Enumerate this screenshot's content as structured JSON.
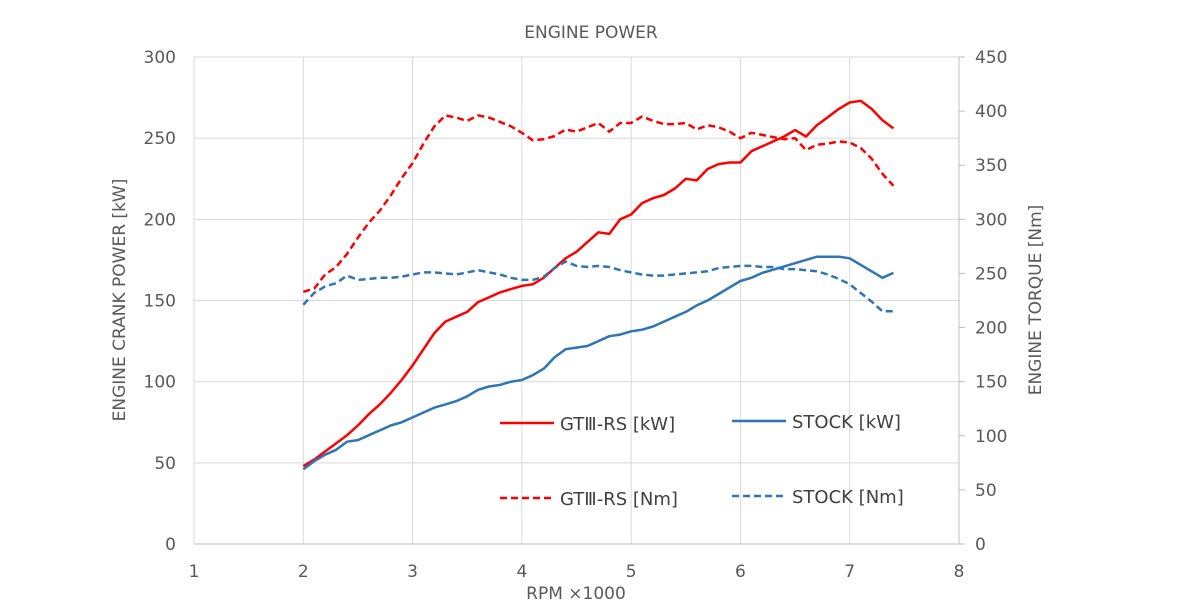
{
  "chart_data": {
    "type": "line",
    "title": "ENGINE POWER",
    "xlabel": "RPM ×1000",
    "ylabel": "ENGINE CRANK POWER [kW]",
    "y2label": "ENGINE TORQUE [Nm]",
    "xlim": [
      1,
      8
    ],
    "ylim": [
      0,
      300
    ],
    "y2lim": [
      0,
      450
    ],
    "xticks": [
      1,
      2,
      3,
      4,
      5,
      6,
      7,
      8
    ],
    "yticks": [
      0,
      50,
      100,
      150,
      200,
      250,
      300
    ],
    "y2ticks": [
      0,
      50,
      100,
      150,
      200,
      250,
      300,
      350,
      400,
      450
    ],
    "grid": "vertical and horizontal",
    "legend_position": "inside, lower-right",
    "series": [
      {
        "name": "GTⅢ-RS [kW]",
        "axis": "left",
        "color": "#ff0000",
        "dash": "solid",
        "points": [
          [
            2.0,
            48
          ],
          [
            2.1,
            52
          ],
          [
            2.2,
            57
          ],
          [
            2.3,
            62
          ],
          [
            2.4,
            67
          ],
          [
            2.5,
            73
          ],
          [
            2.6,
            80
          ],
          [
            2.7,
            86
          ],
          [
            2.8,
            93
          ],
          [
            2.9,
            101
          ],
          [
            3.0,
            110
          ],
          [
            3.1,
            120
          ],
          [
            3.2,
            130
          ],
          [
            3.3,
            137
          ],
          [
            3.4,
            140
          ],
          [
            3.5,
            143
          ],
          [
            3.6,
            149
          ],
          [
            3.7,
            152
          ],
          [
            3.8,
            155
          ],
          [
            3.9,
            157
          ],
          [
            4.0,
            159
          ],
          [
            4.1,
            160
          ],
          [
            4.2,
            164
          ],
          [
            4.3,
            170
          ],
          [
            4.4,
            176
          ],
          [
            4.5,
            180
          ],
          [
            4.6,
            186
          ],
          [
            4.7,
            192
          ],
          [
            4.8,
            191
          ],
          [
            4.9,
            200
          ],
          [
            5.0,
            203
          ],
          [
            5.1,
            210
          ],
          [
            5.2,
            213
          ],
          [
            5.3,
            215
          ],
          [
            5.4,
            219
          ],
          [
            5.5,
            225
          ],
          [
            5.6,
            224
          ],
          [
            5.7,
            231
          ],
          [
            5.8,
            234
          ],
          [
            5.9,
            235
          ],
          [
            6.0,
            235
          ],
          [
            6.1,
            242
          ],
          [
            6.2,
            245
          ],
          [
            6.3,
            248
          ],
          [
            6.4,
            251
          ],
          [
            6.5,
            255
          ],
          [
            6.6,
            251
          ],
          [
            6.7,
            258
          ],
          [
            6.8,
            263
          ],
          [
            6.9,
            268
          ],
          [
            7.0,
            272
          ],
          [
            7.1,
            273
          ],
          [
            7.2,
            268
          ],
          [
            7.3,
            261
          ],
          [
            7.4,
            256
          ]
        ]
      },
      {
        "name": "STOCK [kW]",
        "axis": "left",
        "color": "#2e75b6",
        "dash": "solid",
        "points": [
          [
            2.0,
            46
          ],
          [
            2.1,
            51
          ],
          [
            2.2,
            55
          ],
          [
            2.3,
            58
          ],
          [
            2.4,
            63
          ],
          [
            2.5,
            64
          ],
          [
            2.6,
            67
          ],
          [
            2.7,
            70
          ],
          [
            2.8,
            73
          ],
          [
            2.9,
            75
          ],
          [
            3.0,
            78
          ],
          [
            3.1,
            81
          ],
          [
            3.2,
            84
          ],
          [
            3.3,
            86
          ],
          [
            3.4,
            88
          ],
          [
            3.5,
            91
          ],
          [
            3.6,
            95
          ],
          [
            3.7,
            97
          ],
          [
            3.8,
            98
          ],
          [
            3.9,
            100
          ],
          [
            4.0,
            101
          ],
          [
            4.1,
            104
          ],
          [
            4.2,
            108
          ],
          [
            4.3,
            115
          ],
          [
            4.4,
            120
          ],
          [
            4.5,
            121
          ],
          [
            4.6,
            122
          ],
          [
            4.7,
            125
          ],
          [
            4.8,
            128
          ],
          [
            4.9,
            129
          ],
          [
            5.0,
            131
          ],
          [
            5.1,
            132
          ],
          [
            5.2,
            134
          ],
          [
            5.3,
            137
          ],
          [
            5.4,
            140
          ],
          [
            5.5,
            143
          ],
          [
            5.6,
            147
          ],
          [
            5.7,
            150
          ],
          [
            5.8,
            154
          ],
          [
            5.9,
            158
          ],
          [
            6.0,
            162
          ],
          [
            6.1,
            164
          ],
          [
            6.2,
            167
          ],
          [
            6.3,
            169
          ],
          [
            6.4,
            171
          ],
          [
            6.5,
            173
          ],
          [
            6.6,
            175
          ],
          [
            6.7,
            177
          ],
          [
            6.8,
            177
          ],
          [
            6.9,
            177
          ],
          [
            7.0,
            176
          ],
          [
            7.1,
            172
          ],
          [
            7.2,
            168
          ],
          [
            7.3,
            164
          ],
          [
            7.4,
            167
          ]
        ]
      },
      {
        "name": "GTⅢ-RS [Nm]",
        "axis": "right",
        "color": "#ff0000",
        "dash": "dashed",
        "points": [
          [
            2.0,
            233
          ],
          [
            2.1,
            236
          ],
          [
            2.2,
            249
          ],
          [
            2.3,
            256
          ],
          [
            2.4,
            268
          ],
          [
            2.5,
            283
          ],
          [
            2.6,
            297
          ],
          [
            2.7,
            308
          ],
          [
            2.8,
            322
          ],
          [
            2.9,
            338
          ],
          [
            3.0,
            352
          ],
          [
            3.1,
            370
          ],
          [
            3.2,
            386
          ],
          [
            3.3,
            396
          ],
          [
            3.4,
            394
          ],
          [
            3.5,
            391
          ],
          [
            3.6,
            396
          ],
          [
            3.7,
            394
          ],
          [
            3.8,
            390
          ],
          [
            3.9,
            386
          ],
          [
            4.0,
            380
          ],
          [
            4.1,
            373
          ],
          [
            4.2,
            374
          ],
          [
            4.3,
            377
          ],
          [
            4.4,
            383
          ],
          [
            4.5,
            381
          ],
          [
            4.6,
            385
          ],
          [
            4.7,
            389
          ],
          [
            4.8,
            381
          ],
          [
            4.9,
            389
          ],
          [
            5.0,
            389
          ],
          [
            5.1,
            395
          ],
          [
            5.2,
            391
          ],
          [
            5.3,
            388
          ],
          [
            5.4,
            388
          ],
          [
            5.5,
            389
          ],
          [
            5.6,
            383
          ],
          [
            5.7,
            387
          ],
          [
            5.8,
            385
          ],
          [
            5.9,
            381
          ],
          [
            6.0,
            375
          ],
          [
            6.1,
            380
          ],
          [
            6.2,
            378
          ],
          [
            6.3,
            376
          ],
          [
            6.4,
            374
          ],
          [
            6.5,
            375
          ],
          [
            6.6,
            364
          ],
          [
            6.7,
            369
          ],
          [
            6.8,
            370
          ],
          [
            6.9,
            372
          ],
          [
            7.0,
            371
          ],
          [
            7.1,
            366
          ],
          [
            7.2,
            356
          ],
          [
            7.3,
            342
          ],
          [
            7.4,
            331
          ]
        ]
      },
      {
        "name": "STOCK [Nm]",
        "axis": "right",
        "color": "#2e75b6",
        "dash": "dashed",
        "points": [
          [
            2.0,
            221
          ],
          [
            2.1,
            232
          ],
          [
            2.2,
            238
          ],
          [
            2.3,
            241
          ],
          [
            2.4,
            248
          ],
          [
            2.5,
            244
          ],
          [
            2.6,
            245
          ],
          [
            2.7,
            246
          ],
          [
            2.8,
            246
          ],
          [
            2.9,
            247
          ],
          [
            3.0,
            249
          ],
          [
            3.1,
            251
          ],
          [
            3.2,
            251
          ],
          [
            3.3,
            250
          ],
          [
            3.4,
            249
          ],
          [
            3.5,
            251
          ],
          [
            3.6,
            253
          ],
          [
            3.7,
            251
          ],
          [
            3.8,
            249
          ],
          [
            3.9,
            246
          ],
          [
            4.0,
            244
          ],
          [
            4.1,
            244
          ],
          [
            4.2,
            247
          ],
          [
            4.3,
            255
          ],
          [
            4.4,
            261
          ],
          [
            4.5,
            257
          ],
          [
            4.6,
            256
          ],
          [
            4.7,
            257
          ],
          [
            4.8,
            256
          ],
          [
            4.9,
            253
          ],
          [
            5.0,
            251
          ],
          [
            5.1,
            249
          ],
          [
            5.2,
            248
          ],
          [
            5.3,
            248
          ],
          [
            5.4,
            249
          ],
          [
            5.5,
            250
          ],
          [
            5.6,
            251
          ],
          [
            5.7,
            252
          ],
          [
            5.8,
            255
          ],
          [
            5.9,
            256
          ],
          [
            6.0,
            257
          ],
          [
            6.1,
            257
          ],
          [
            6.2,
            256
          ],
          [
            6.3,
            256
          ],
          [
            6.4,
            254
          ],
          [
            6.5,
            254
          ],
          [
            6.6,
            253
          ],
          [
            6.7,
            252
          ],
          [
            6.8,
            249
          ],
          [
            6.9,
            245
          ],
          [
            7.0,
            240
          ],
          [
            7.1,
            232
          ],
          [
            7.2,
            224
          ],
          [
            7.3,
            215
          ],
          [
            7.4,
            215
          ]
        ]
      }
    ]
  }
}
